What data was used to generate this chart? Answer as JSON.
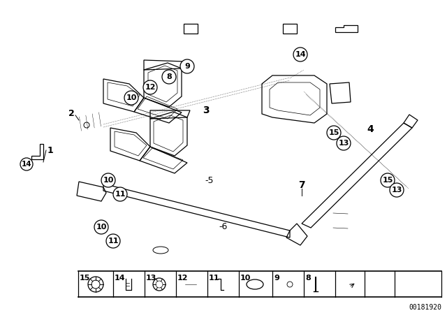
{
  "bg_color": "#ffffff",
  "part_number": "00181920",
  "lc": "#000000"
}
